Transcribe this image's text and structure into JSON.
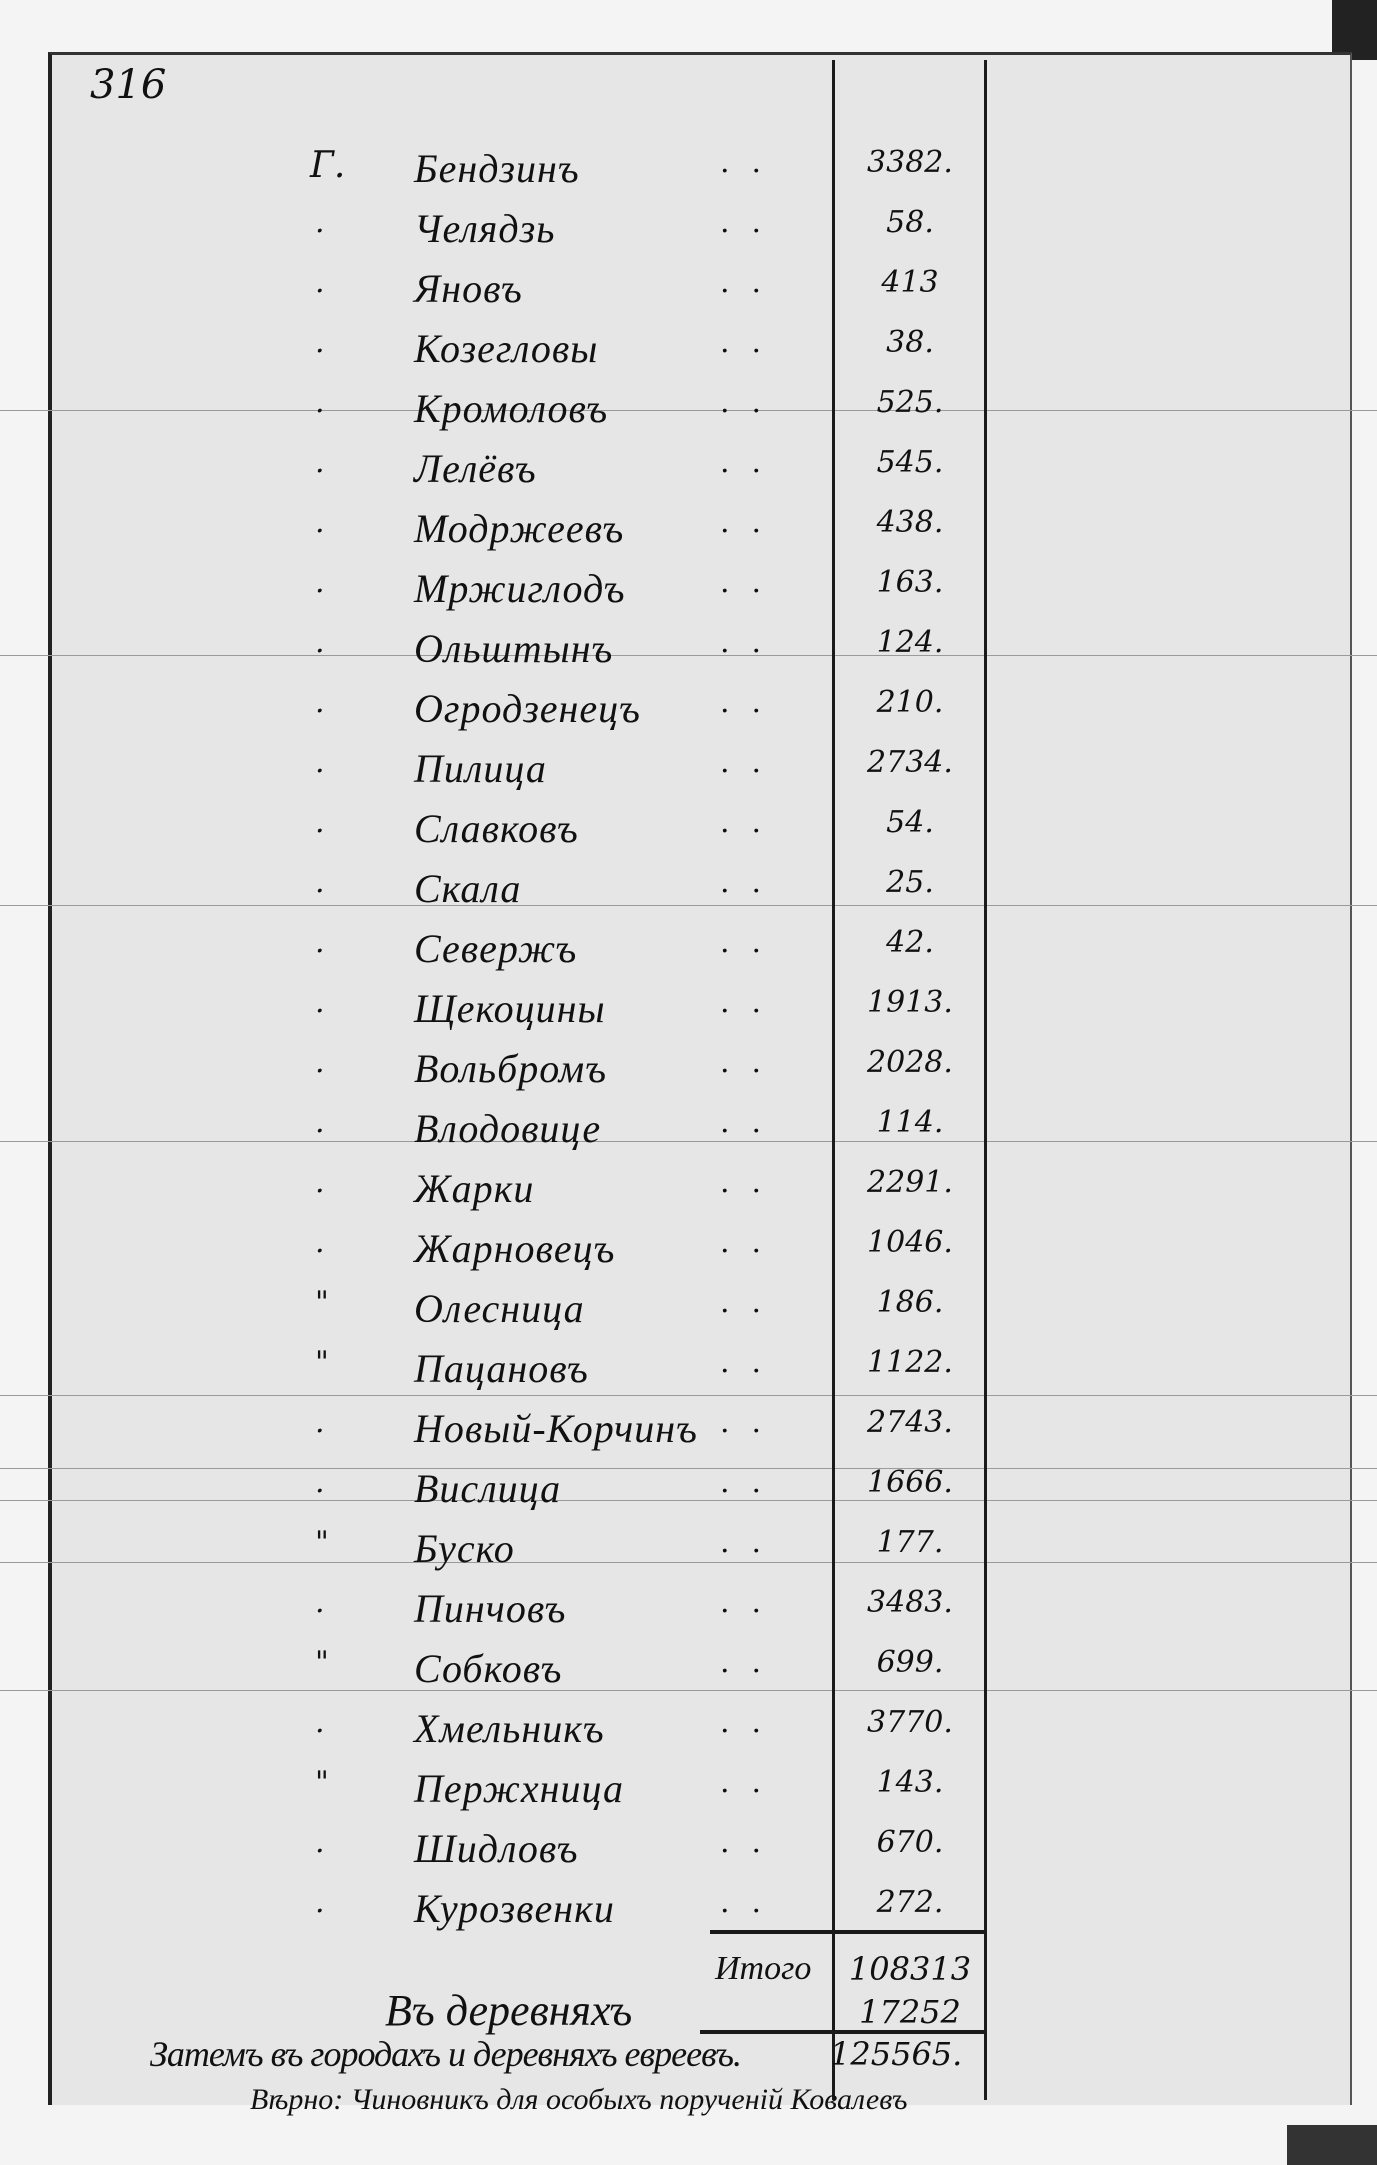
{
  "page_number": "316",
  "entries": [
    {
      "mark": "Г.",
      "name": "Бендзинъ",
      "count": "3382."
    },
    {
      "mark": ".",
      "name": "Челядзь",
      "count": "58."
    },
    {
      "mark": ".",
      "name": "Яновъ",
      "count": "413"
    },
    {
      "mark": ".",
      "name": "Козегловы",
      "count": "38."
    },
    {
      "mark": ".",
      "name": "Кромоловъ",
      "count": "525."
    },
    {
      "mark": ".",
      "name": "Лелёвъ",
      "count": "545."
    },
    {
      "mark": ".",
      "name": "Модржеевъ",
      "count": "438."
    },
    {
      "mark": ".",
      "name": "Мржиглодъ",
      "count": "163."
    },
    {
      "mark": ".",
      "name": "Ольштынъ",
      "count": "124."
    },
    {
      "mark": ".",
      "name": "Огродзенецъ",
      "count": "210."
    },
    {
      "mark": ".",
      "name": "Пилица",
      "count": "2734."
    },
    {
      "mark": ".",
      "name": "Славковъ",
      "count": "54."
    },
    {
      "mark": ".",
      "name": "Скала",
      "count": "25."
    },
    {
      "mark": ".",
      "name": "Севержъ",
      "count": "42."
    },
    {
      "mark": ".",
      "name": "Щекоцины",
      "count": "1913."
    },
    {
      "mark": ".",
      "name": "Вольбромъ",
      "count": "2028."
    },
    {
      "mark": ".",
      "name": "Влодовице",
      "count": "114."
    },
    {
      "mark": ".",
      "name": "Жарки",
      "count": "2291."
    },
    {
      "mark": ".",
      "name": "Жарновецъ",
      "count": "1046."
    },
    {
      "mark": "\"",
      "name": "Олесница",
      "count": "186."
    },
    {
      "mark": "\"",
      "name": "Пацановъ",
      "count": "1122."
    },
    {
      "mark": ".",
      "name": "Новый-Корчинъ",
      "count": "2743."
    },
    {
      "mark": ".",
      "name": "Вислица",
      "count": "1666."
    },
    {
      "mark": "\"",
      "name": "Буско",
      "count": "177."
    },
    {
      "mark": ".",
      "name": "Пинчовъ",
      "count": "3483."
    },
    {
      "mark": "\"",
      "name": "Собковъ",
      "count": "699."
    },
    {
      "mark": ".",
      "name": "Хмельникъ",
      "count": "3770."
    },
    {
      "mark": "\"",
      "name": "Пержхница",
      "count": "143."
    },
    {
      "mark": ".",
      "name": "Шидловъ",
      "count": "670."
    },
    {
      "mark": ".",
      "name": "Курозвенки",
      "count": "272."
    }
  ],
  "totals": {
    "subtotal_label": "Итого",
    "subtotal": "108313",
    "villages_label": "Въ деревняхъ",
    "villages": "17252",
    "grand_label": "Затемъ въ городахъ и деревняхъ евреевъ.",
    "grand": "125565."
  },
  "signature": "Вѣрно: Чиновникъ для особыхъ порученій Ковалевъ"
}
